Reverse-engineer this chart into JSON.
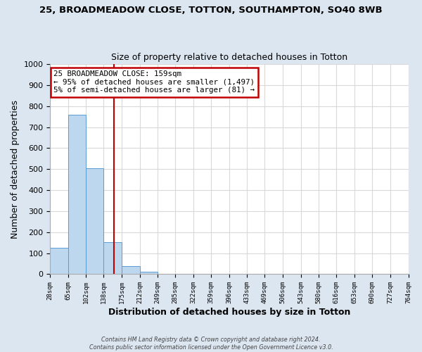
{
  "title_line1": "25, BROADMEADOW CLOSE, TOTTON, SOUTHAMPTON, SO40 8WB",
  "title_line2": "Size of property relative to detached houses in Totton",
  "xlabel": "Distribution of detached houses by size in Totton",
  "ylabel": "Number of detached properties",
  "bar_edges": [
    28,
    65,
    102,
    138,
    175,
    212,
    249,
    285,
    322,
    359,
    396,
    433,
    469,
    506,
    543,
    580,
    616,
    653,
    690,
    727,
    764
  ],
  "bar_heights": [
    127,
    760,
    505,
    152,
    40,
    13,
    0,
    0,
    0,
    0,
    0,
    0,
    0,
    0,
    0,
    0,
    0,
    0,
    0,
    0
  ],
  "bar_color": "#bdd7ee",
  "bar_edge_color": "#5b9bd5",
  "annotation_line1": "25 BROADMEADOW CLOSE: 159sqm",
  "annotation_line2": "← 95% of detached houses are smaller (1,497)",
  "annotation_line3": "5% of semi-detached houses are larger (81) →",
  "annotation_box_color": "#ffffff",
  "annotation_box_edge_color": "#c00000",
  "vline_x": 159,
  "vline_color": "#c00000",
  "ylim": [
    0,
    1000
  ],
  "yticks": [
    0,
    100,
    200,
    300,
    400,
    500,
    600,
    700,
    800,
    900,
    1000
  ],
  "grid_color": "#d9d9d9",
  "fig_background_color": "#dce6f1",
  "plot_background_color": "#ffffff",
  "footer_line1": "Contains HM Land Registry data © Crown copyright and database right 2024.",
  "footer_line2": "Contains public sector information licensed under the Open Government Licence v3.0."
}
